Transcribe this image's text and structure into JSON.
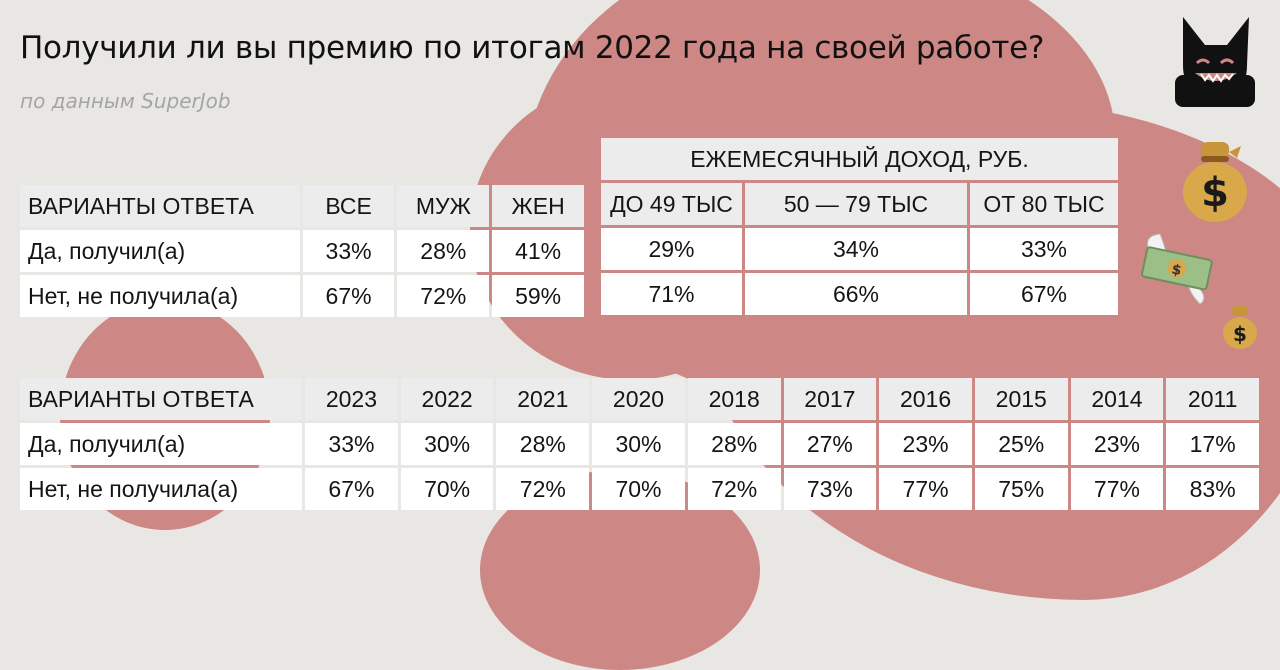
{
  "title": "Получили ли вы премию по итогам 2022 года на своей работе?",
  "subtitle": "по данным SuperJob",
  "colors": {
    "background": "#e8e7e3",
    "blob": "#cd8784",
    "cell": "#ffffff",
    "header_cell": "#ececec"
  },
  "icons": [
    "mascot-icon",
    "money-bag-icon",
    "flying-money-icon",
    "small-money-bag-icon"
  ],
  "table1": {
    "header": [
      "ВАРИАНТЫ ОТВЕТА",
      "ВСЕ",
      "МУЖ",
      "ЖЕН"
    ],
    "rows": [
      [
        "Да, получил(а)",
        "33%",
        "28%",
        "41%"
      ],
      [
        "Нет, не получила(а)",
        "67%",
        "72%",
        "59%"
      ]
    ]
  },
  "table2": {
    "group_title": "ЕЖЕМЕСЯЧНЫЙ ДОХОД, РУБ.",
    "header": [
      "ДО 49 ТЫС",
      "50 — 79 ТЫС",
      "ОТ 80 ТЫС"
    ],
    "rows": [
      [
        "29%",
        "34%",
        "33%"
      ],
      [
        "71%",
        "66%",
        "67%"
      ]
    ]
  },
  "table3": {
    "header": [
      "ВАРИАНТЫ ОТВЕТА",
      "2023",
      "2022",
      "2021",
      "2020",
      "2018",
      "2017",
      "2016",
      "2015",
      "2014",
      "2011"
    ],
    "rows": [
      [
        "Да, получил(а)",
        "33%",
        "30%",
        "28%",
        "30%",
        "28%",
        "27%",
        "23%",
        "25%",
        "23%",
        "17%"
      ],
      [
        "Нет, не получила(а)",
        "67%",
        "70%",
        "72%",
        "70%",
        "72%",
        "73%",
        "77%",
        "75%",
        "77%",
        "83%"
      ]
    ]
  }
}
